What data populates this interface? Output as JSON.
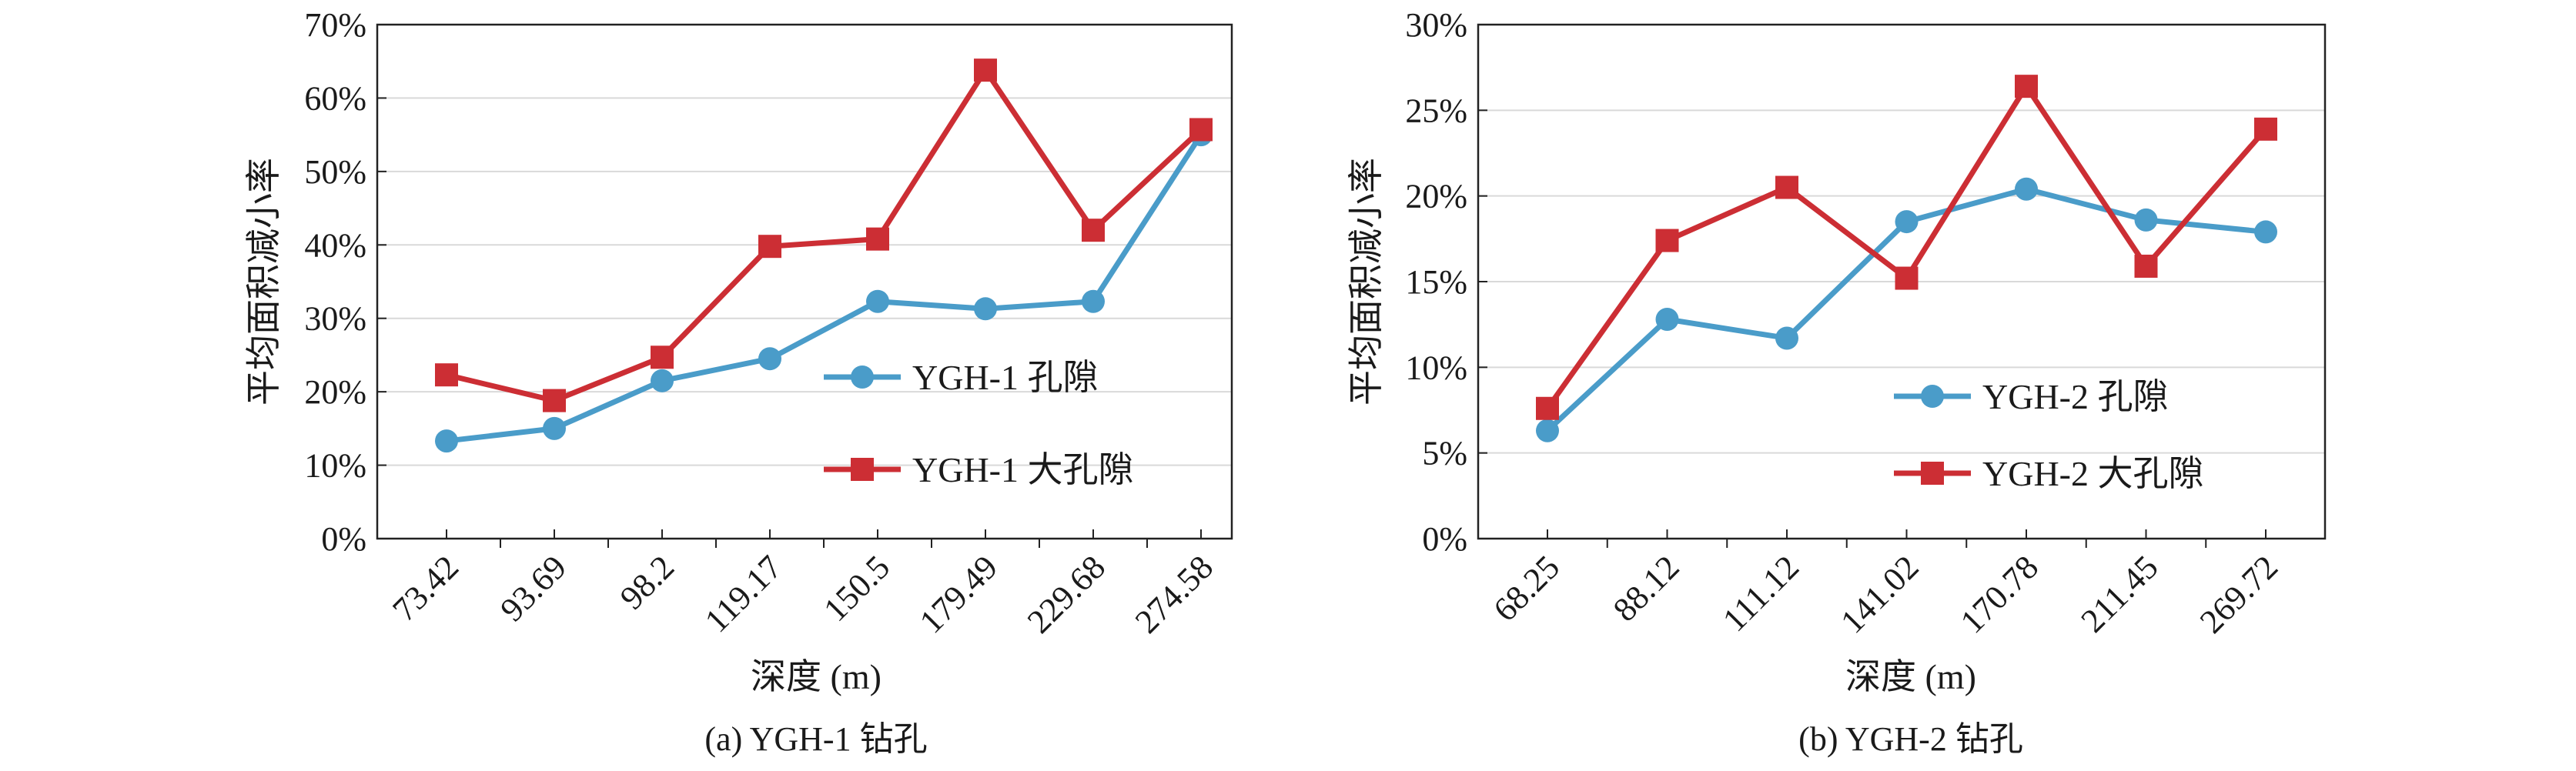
{
  "chart_data": [
    {
      "type": "line",
      "title": "(a) YGH-1 钻孔",
      "xlabel": "深度 (m)",
      "ylabel": "平均面积减小率",
      "categories": [
        "73.42",
        "93.69",
        "98.2",
        "119.17",
        "150.5",
        "179.49",
        "229.68",
        "274.58"
      ],
      "ylim": [
        0,
        70
      ],
      "yticks": [
        "0%",
        "10%",
        "20%",
        "30%",
        "40%",
        "50%",
        "60%",
        "70%"
      ],
      "grid": true,
      "legend_position": "center-right",
      "series": [
        {
          "name": "YGH-1 孔隙",
          "marker": "circle",
          "color": "#4a9cc9",
          "values": [
            13.3,
            15.0,
            21.5,
            24.5,
            32.3,
            31.3,
            32.3,
            55.0
          ]
        },
        {
          "name": "YGH-1 大孔隙",
          "marker": "square",
          "color": "#cc2e34",
          "values": [
            22.3,
            18.8,
            24.7,
            39.8,
            40.8,
            63.8,
            42.0,
            55.7
          ]
        }
      ]
    },
    {
      "type": "line",
      "title": "(b) YGH-2 钻孔",
      "xlabel": "深度 (m)",
      "ylabel": "平均面积减小率",
      "categories": [
        "68.25",
        "88.12",
        "111.12",
        "141.02",
        "170.78",
        "211.45",
        "269.72"
      ],
      "ylim": [
        0,
        30
      ],
      "yticks": [
        "0%",
        "5%",
        "10%",
        "15%",
        "20%",
        "25%",
        "30%"
      ],
      "grid": true,
      "legend_position": "center-right",
      "series": [
        {
          "name": "YGH-2 孔隙",
          "marker": "circle",
          "color": "#4a9cc9",
          "values": [
            6.3,
            12.8,
            11.7,
            18.5,
            20.4,
            18.6,
            17.9
          ]
        },
        {
          "name": "YGH-2 大孔隙",
          "marker": "square",
          "color": "#cc2e34",
          "values": [
            7.6,
            17.4,
            20.5,
            15.2,
            26.4,
            15.9,
            23.9
          ]
        }
      ]
    }
  ]
}
